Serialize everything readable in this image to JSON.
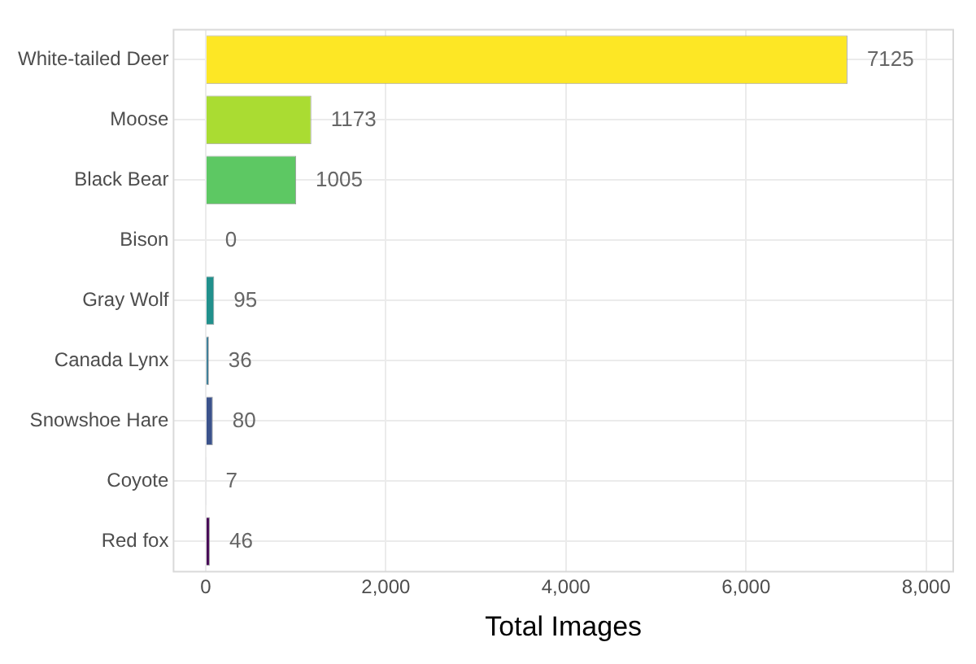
{
  "chart_data": {
    "type": "bar",
    "orientation": "horizontal",
    "xlabel": "Total Images",
    "categories": [
      "White-tailed Deer",
      "Moose",
      "Black Bear",
      "Bison",
      "Gray Wolf",
      "Canada Lynx",
      "Snowshoe Hare",
      "Coyote",
      "Red fox"
    ],
    "values": [
      7125,
      1173,
      1005,
      0,
      95,
      36,
      80,
      7,
      46
    ],
    "colors": [
      "#fde725",
      "#aadc32",
      "#5dc863",
      "#27ad81",
      "#21908c",
      "#2c728e",
      "#3b528b",
      "#472d7b",
      "#440154"
    ],
    "xlim": [
      -356,
      8300
    ],
    "xticks": [
      0,
      {
        "value": 2000,
        "label": "2,000"
      },
      {
        "value": 4000,
        "label": "4,000"
      },
      {
        "value": 6000,
        "label": "6,000"
      },
      {
        "value": 8000,
        "label": "8,000"
      }
    ],
    "grid": true,
    "data_labels": true
  }
}
